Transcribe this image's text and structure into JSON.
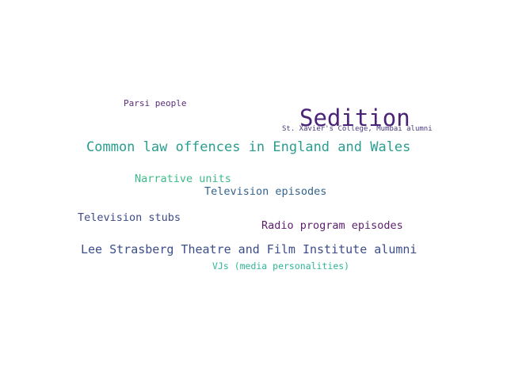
{
  "words": [
    {
      "text": "Sedition",
      "color": "#4a2378"
    },
    {
      "text": "Common law offences in England and Wales",
      "color": "#2a9d8f"
    },
    {
      "text": "Lee Strasberg Theatre and Film Institute alumni",
      "color": "#3c4d8a"
    },
    {
      "text": "Radio program episodes",
      "color": "#5b1f6e"
    },
    {
      "text": "Television episodes",
      "color": "#33638d"
    },
    {
      "text": "Narrative units",
      "color": "#3dbb87"
    },
    {
      "text": "Television stubs",
      "color": "#3d4a87"
    },
    {
      "text": "VJs (media personalities)",
      "color": "#2fb597"
    },
    {
      "text": "Parsi people",
      "color": "#5b2d7a"
    },
    {
      "text": "St. Xavier's College, Mumbai alumni",
      "color": "#4a3a7d"
    }
  ]
}
